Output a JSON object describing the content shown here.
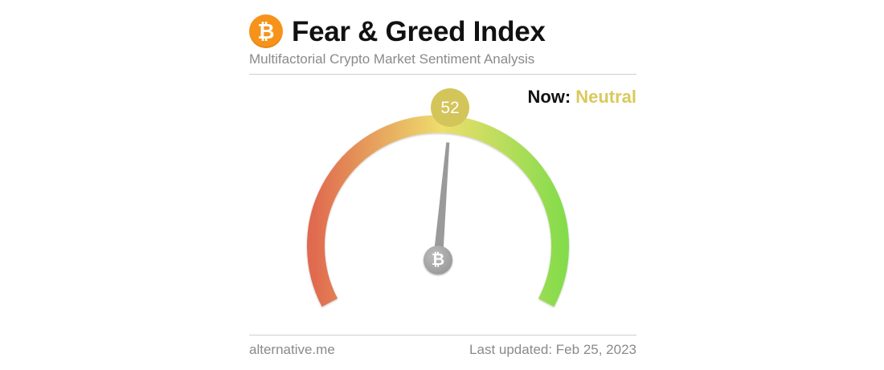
{
  "header": {
    "logo_glyph": "₿",
    "title": "Fear & Greed Index",
    "subtitle": "Multifactorial Crypto Market Sentiment Analysis"
  },
  "status": {
    "now_label": "Now:",
    "now_value": "Neutral",
    "now_color": "#d9c95c"
  },
  "gauge": {
    "value": 52,
    "value_text": "52",
    "min": 0,
    "max": 100,
    "hub_glyph": "₿",
    "colors": {
      "fear": "#e06a4f",
      "mid": "#eede6c",
      "greed": "#7fdc4a",
      "badge": "#d4c55a",
      "needle": "#9a9a9a"
    },
    "icons": {
      "logo": "bitcoin-icon",
      "hub": "bitcoin-icon"
    }
  },
  "footer": {
    "source": "alternative.me",
    "updated": "Last updated: Feb 25, 2023"
  }
}
